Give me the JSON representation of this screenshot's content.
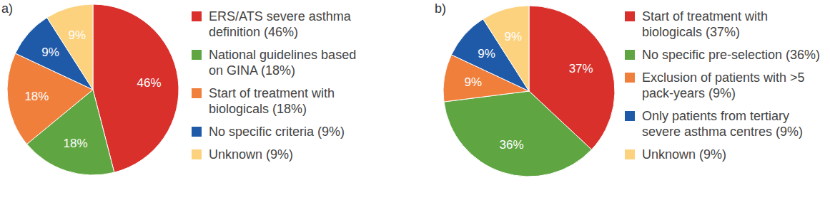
{
  "chart_data": [
    {
      "type": "pie",
      "title": "a)",
      "categories": [
        "ERS/ATS severe asthma definition (46%)",
        "National guidelines based on GINA (18%)",
        "Start of treatment with biologicals (18%)",
        "No specific criteria (9%)",
        "Unknown (9%)"
      ],
      "values": [
        46,
        18,
        18,
        9,
        9
      ],
      "value_labels": [
        "46%",
        "18%",
        "18%",
        "9%",
        "9%"
      ],
      "colors": [
        "#d9302c",
        "#5fa642",
        "#f07f3c",
        "#1f5aa8",
        "#fcd27e"
      ],
      "data_labels": true,
      "legend": "right"
    },
    {
      "type": "pie",
      "title": "b)",
      "categories": [
        "Start of treatment with biologicals (37%)",
        "No specific pre-selection (36%)",
        "Exclusion of patients with >5 pack-years (9%)",
        "Only patients from tertiary severe asthma centres (9%)",
        "Unknown (9%)"
      ],
      "values": [
        37,
        36,
        9,
        9,
        9
      ],
      "value_labels": [
        "37%",
        "36%",
        "9%",
        "9%",
        "9%"
      ],
      "colors": [
        "#d9302c",
        "#5fa642",
        "#f07f3c",
        "#1f5aa8",
        "#fcd27e"
      ],
      "data_labels": true,
      "legend": "right"
    }
  ]
}
